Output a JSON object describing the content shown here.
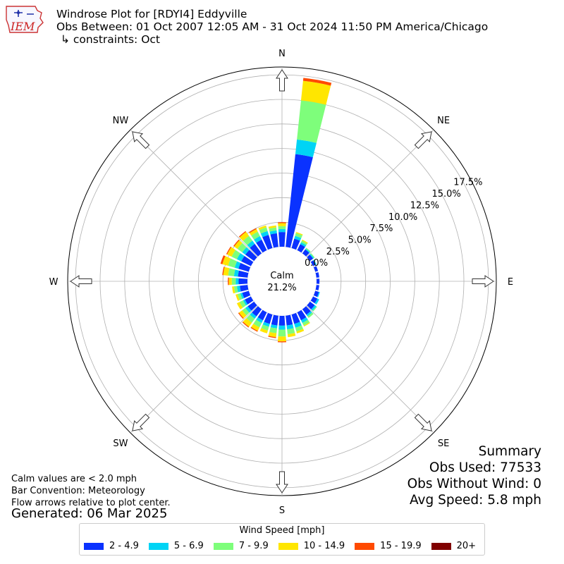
{
  "header": {
    "logo_text": "IEM",
    "title_line1": "Windrose Plot for [RDYI4] Eddyville",
    "title_line2": "Obs Between: 01 Oct 2007 12:05 AM - 31 Oct 2024 11:50 PM America/Chicago",
    "title_line3": "↳ constraints: Oct"
  },
  "notes": {
    "calm_note": "Calm values are < 2.0 mph",
    "bar_note": "Bar Convention: Meteorology",
    "flow_note": "Flow arrows relative to plot center.",
    "generated": "Generated: 06 Mar 2025"
  },
  "summary": {
    "title": "Summary",
    "obs_used": "Obs Used: 77533",
    "obs_without_wind": "Obs Without Wind: 0",
    "avg_speed": "Avg Speed: 5.8 mph"
  },
  "legend": {
    "title": "Wind Speed [mph]",
    "items": [
      {
        "label": "2 - 4.9",
        "color": "#0a32ff"
      },
      {
        "label": "5 - 6.9",
        "color": "#00d4f5"
      },
      {
        "label": "7 - 9.9",
        "color": "#7efe7b"
      },
      {
        "label": "10 - 14.9",
        "color": "#ffe600"
      },
      {
        "label": "15 - 19.9",
        "color": "#ff4a00"
      },
      {
        "label": "20+",
        "color": "#800000"
      }
    ]
  },
  "chart_data": {
    "type": "windrose",
    "calm_label": "Calm",
    "calm_value": "21.2%",
    "radial_ticks": [
      "0.0%",
      "2.5%",
      "5.0%",
      "7.5%",
      "10.0%",
      "12.5%",
      "15.0%",
      "17.5%"
    ],
    "rmax": 18.3,
    "compass_labels": [
      "N",
      "NE",
      "E",
      "SE",
      "S",
      "SW",
      "W",
      "NW"
    ],
    "bins": [
      "2 - 4.9",
      "5 - 6.9",
      "7 - 9.9",
      "10 - 14.9",
      "15 - 19.9",
      "20+"
    ],
    "direction_step_deg": 10,
    "directions_deg": [
      0,
      10,
      20,
      30,
      40,
      50,
      60,
      70,
      80,
      90,
      100,
      110,
      120,
      130,
      140,
      150,
      160,
      170,
      180,
      190,
      200,
      210,
      220,
      230,
      240,
      250,
      260,
      270,
      280,
      290,
      300,
      310,
      320,
      330,
      340,
      350
    ],
    "frequencies_percent": [
      [
        1.5,
        0.3,
        0.3,
        0.3,
        0.1,
        0.0
      ],
      [
        9.5,
        1.5,
        4.0,
        2.0,
        0.3,
        0.0
      ],
      [
        1.0,
        0.3,
        0.3,
        0.1,
        0.0,
        0.0
      ],
      [
        0.7,
        0.2,
        0.2,
        0.1,
        0.0,
        0.0
      ],
      [
        0.5,
        0.1,
        0.1,
        0.0,
        0.0,
        0.0
      ],
      [
        0.4,
        0.1,
        0.1,
        0.0,
        0.0,
        0.0
      ],
      [
        0.3,
        0.1,
        0.0,
        0.0,
        0.0,
        0.0
      ],
      [
        0.3,
        0.0,
        0.0,
        0.0,
        0.0,
        0.0
      ],
      [
        0.3,
        0.0,
        0.0,
        0.0,
        0.0,
        0.0
      ],
      [
        0.3,
        0.0,
        0.0,
        0.0,
        0.0,
        0.0
      ],
      [
        0.3,
        0.0,
        0.0,
        0.0,
        0.0,
        0.0
      ],
      [
        0.4,
        0.1,
        0.0,
        0.0,
        0.0,
        0.0
      ],
      [
        0.5,
        0.2,
        0.0,
        0.0,
        0.0,
        0.0
      ],
      [
        0.6,
        0.2,
        0.1,
        0.0,
        0.0,
        0.0
      ],
      [
        0.7,
        0.2,
        0.2,
        0.0,
        0.0,
        0.0
      ],
      [
        0.9,
        0.3,
        0.3,
        0.1,
        0.0,
        0.0
      ],
      [
        1.0,
        0.4,
        0.4,
        0.2,
        0.0,
        0.0
      ],
      [
        1.0,
        0.4,
        0.5,
        0.3,
        0.0,
        0.0
      ],
      [
        1.0,
        0.4,
        0.7,
        0.5,
        0.1,
        0.0
      ],
      [
        1.0,
        0.3,
        0.5,
        0.4,
        0.1,
        0.0
      ],
      [
        1.0,
        0.3,
        0.4,
        0.3,
        0.0,
        0.0
      ],
      [
        0.9,
        0.3,
        0.5,
        0.4,
        0.1,
        0.0
      ],
      [
        0.9,
        0.3,
        0.5,
        0.5,
        0.1,
        0.0
      ],
      [
        0.8,
        0.3,
        0.4,
        0.4,
        0.1,
        0.0
      ],
      [
        0.7,
        0.2,
        0.4,
        0.3,
        0.0,
        0.0
      ],
      [
        0.7,
        0.2,
        0.3,
        0.2,
        0.0,
        0.0
      ],
      [
        0.8,
        0.3,
        0.3,
        0.2,
        0.0,
        0.0
      ],
      [
        0.9,
        0.3,
        0.4,
        0.3,
        0.1,
        0.0
      ],
      [
        1.0,
        0.4,
        0.6,
        0.5,
        0.1,
        0.0
      ],
      [
        1.1,
        0.4,
        0.7,
        0.6,
        0.2,
        0.0
      ],
      [
        1.1,
        0.5,
        0.6,
        0.5,
        0.1,
        0.0
      ],
      [
        1.1,
        0.4,
        0.6,
        0.4,
        0.1,
        0.0
      ],
      [
        1.2,
        0.4,
        0.6,
        0.5,
        0.1,
        0.0
      ],
      [
        1.2,
        0.4,
        0.5,
        0.3,
        0.1,
        0.0
      ],
      [
        1.4,
        0.4,
        0.4,
        0.2,
        0.0,
        0.0
      ],
      [
        1.4,
        0.3,
        0.3,
        0.2,
        0.0,
        0.0
      ]
    ]
  }
}
